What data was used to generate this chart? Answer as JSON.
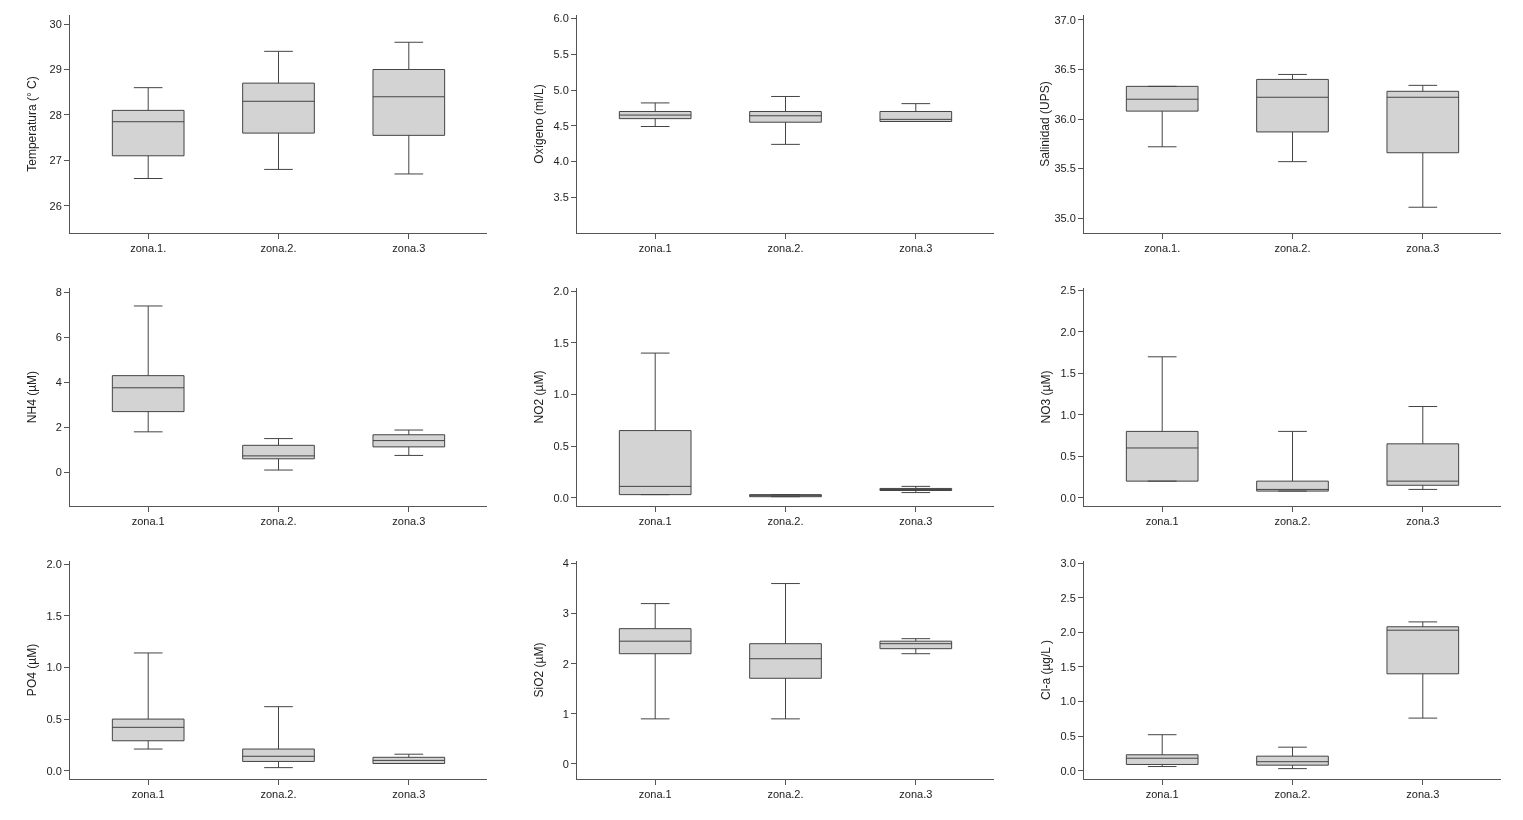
{
  "chart_data": [
    {
      "type": "box",
      "ylabel": "Temperatura (° C)",
      "categories": [
        "zona.1.",
        "zona.2.",
        "zona.3"
      ],
      "color": "#d3d3d3",
      "ylim": [
        25.4,
        30.2
      ],
      "yticks": [
        26,
        27,
        28,
        29,
        30
      ],
      "boxes": [
        {
          "low": 26.6,
          "q1": 27.1,
          "median": 27.85,
          "q3": 28.1,
          "high": 28.6
        },
        {
          "low": 26.8,
          "q1": 27.6,
          "median": 28.3,
          "q3": 28.7,
          "high": 29.4
        },
        {
          "low": 26.7,
          "q1": 27.55,
          "median": 28.4,
          "q3": 29.0,
          "high": 29.6
        }
      ]
    },
    {
      "type": "box",
      "ylabel": "Oxígeno (ml/L)",
      "categories": [
        "zona.1",
        "zona.2.",
        "zona.3"
      ],
      "color": "#d3d3d3",
      "ylim": [
        3.0,
        6.05
      ],
      "yticks": [
        {
          "value": 3.5,
          "label": "3.5"
        },
        {
          "value": 4,
          "label": "4.0"
        },
        {
          "value": 4.5,
          "label": "4.5"
        },
        {
          "value": 5,
          "label": "5.0"
        },
        {
          "value": 5.5,
          "label": "5.5"
        },
        {
          "value": 6,
          "label": "6.0"
        }
      ],
      "boxes": [
        {
          "low": 4.49,
          "q1": 4.6,
          "median": 4.65,
          "q3": 4.7,
          "high": 4.82
        },
        {
          "low": 4.24,
          "q1": 4.55,
          "median": 4.64,
          "q3": 4.7,
          "high": 4.91
        },
        {
          "low": 4.56,
          "q1": 4.56,
          "median": 4.59,
          "q3": 4.7,
          "high": 4.81
        }
      ]
    },
    {
      "type": "box",
      "ylabel": "Salinidad (UPS)",
      "categories": [
        "zona.1.",
        "zona.2.",
        "zona.3"
      ],
      "color": "#d3d3d3",
      "ylim": [
        34.85,
        37.05
      ],
      "yticks": [
        {
          "value": 35,
          "label": "35.0"
        },
        {
          "value": 35.5,
          "label": "35.5"
        },
        {
          "value": 36,
          "label": "36.0"
        },
        {
          "value": 36.5,
          "label": "36.5"
        },
        {
          "value": 37,
          "label": "37.0"
        }
      ],
      "boxes": [
        {
          "low": 35.72,
          "q1": 36.08,
          "median": 36.2,
          "q3": 36.33,
          "high": 36.33
        },
        {
          "low": 35.57,
          "q1": 35.87,
          "median": 36.22,
          "q3": 36.4,
          "high": 36.45
        },
        {
          "low": 35.11,
          "q1": 35.66,
          "median": 36.22,
          "q3": 36.28,
          "high": 36.34
        }
      ]
    },
    {
      "type": "box",
      "ylabel": "NH4 (µM)",
      "categories": [
        "zona.1",
        "zona.2.",
        "zona.3"
      ],
      "color": "#d3d3d3",
      "ylim": [
        -1.5,
        8.2
      ],
      "yticks": [
        0,
        2,
        4,
        6,
        8
      ],
      "boxes": [
        {
          "low": 1.8,
          "q1": 2.7,
          "median": 3.76,
          "q3": 4.3,
          "high": 7.4
        },
        {
          "low": 0.1,
          "q1": 0.6,
          "median": 0.73,
          "q3": 1.2,
          "high": 1.5
        },
        {
          "low": 0.75,
          "q1": 1.13,
          "median": 1.41,
          "q3": 1.67,
          "high": 1.88
        }
      ]
    },
    {
      "type": "box",
      "ylabel": "NO2 (µM)",
      "categories": [
        "zona.1",
        "zona.2.",
        "zona.3"
      ],
      "color": "#d3d3d3",
      "ylim": [
        -0.08,
        2.03
      ],
      "yticks": [
        {
          "value": 0,
          "label": "0.0"
        },
        {
          "value": 0.5,
          "label": "0.5"
        },
        {
          "value": 1,
          "label": "1.0"
        },
        {
          "value": 1.5,
          "label": "1.5"
        },
        {
          "value": 2,
          "label": "2.0"
        }
      ],
      "boxes": [
        {
          "low": 0.03,
          "q1": 0.03,
          "median": 0.11,
          "q3": 0.65,
          "high": 1.4
        },
        {
          "low": 0.01,
          "q1": 0.01,
          "median": 0.02,
          "q3": 0.03,
          "high": 0.03
        },
        {
          "low": 0.05,
          "q1": 0.07,
          "median": 0.08,
          "q3": 0.09,
          "high": 0.11
        }
      ]
    },
    {
      "type": "box",
      "ylabel": "NO3 (µM)",
      "categories": [
        "zona.1",
        "zona.2.",
        "zona.3"
      ],
      "color": "#d3d3d3",
      "ylim": [
        -0.1,
        2.53
      ],
      "yticks": [
        {
          "value": 0,
          "label": "0.0"
        },
        {
          "value": 0.5,
          "label": "0.5"
        },
        {
          "value": 1,
          "label": "1.0"
        },
        {
          "value": 1.5,
          "label": "1.5"
        },
        {
          "value": 2,
          "label": "2.0"
        },
        {
          "value": 2.5,
          "label": "2.5"
        }
      ],
      "boxes": [
        {
          "low": 0.2,
          "q1": 0.2,
          "median": 0.6,
          "q3": 0.8,
          "high": 1.7
        },
        {
          "low": 0.08,
          "q1": 0.08,
          "median": 0.1,
          "q3": 0.2,
          "high": 0.8
        },
        {
          "low": 0.1,
          "q1": 0.15,
          "median": 0.2,
          "q3": 0.65,
          "high": 1.1
        }
      ]
    },
    {
      "type": "box",
      "ylabel": "PO4 (µM)",
      "categories": [
        "zona.1",
        "zona.2.",
        "zona.3"
      ],
      "color": "#d3d3d3",
      "ylim": [
        -0.08,
        2.03
      ],
      "yticks": [
        {
          "value": 0,
          "label": "0.0"
        },
        {
          "value": 0.5,
          "label": "0.5"
        },
        {
          "value": 1,
          "label": "1.0"
        },
        {
          "value": 1.5,
          "label": "1.5"
        },
        {
          "value": 2,
          "label": "2.0"
        }
      ],
      "boxes": [
        {
          "low": 0.21,
          "q1": 0.29,
          "median": 0.42,
          "q3": 0.5,
          "high": 1.14
        },
        {
          "low": 0.03,
          "q1": 0.09,
          "median": 0.14,
          "q3": 0.21,
          "high": 0.62
        },
        {
          "low": 0.07,
          "q1": 0.07,
          "median": 0.1,
          "q3": 0.13,
          "high": 0.16
        }
      ]
    },
    {
      "type": "box",
      "ylabel": "SiO2 (µM)",
      "categories": [
        "zona.1",
        "zona.2.",
        "zona.3"
      ],
      "color": "#d3d3d3",
      "ylim": [
        -0.3,
        4.05
      ],
      "yticks": [
        0,
        1,
        2,
        3,
        4
      ],
      "boxes": [
        {
          "low": 0.9,
          "q1": 2.2,
          "median": 2.45,
          "q3": 2.7,
          "high": 3.2
        },
        {
          "low": 0.9,
          "q1": 1.71,
          "median": 2.1,
          "q3": 2.4,
          "high": 3.6
        },
        {
          "low": 2.2,
          "q1": 2.3,
          "median": 2.4,
          "q3": 2.45,
          "high": 2.5
        }
      ]
    },
    {
      "type": "box",
      "ylabel": "Cl-a (µg/L )",
      "categories": [
        "zona.1",
        "zona.2.",
        "zona.3"
      ],
      "color": "#d3d3d3",
      "ylim": [
        -0.12,
        3.03
      ],
      "yticks": [
        {
          "value": 0,
          "label": "0.0"
        },
        {
          "value": 0.5,
          "label": "0.5"
        },
        {
          "value": 1,
          "label": "1.0"
        },
        {
          "value": 1.5,
          "label": "1.5"
        },
        {
          "value": 2,
          "label": "2.0"
        },
        {
          "value": 2.5,
          "label": "2.5"
        },
        {
          "value": 3,
          "label": "3.0"
        }
      ],
      "boxes": [
        {
          "low": 0.06,
          "q1": 0.09,
          "median": 0.18,
          "q3": 0.23,
          "high": 0.52
        },
        {
          "low": 0.03,
          "q1": 0.08,
          "median": 0.13,
          "q3": 0.21,
          "high": 0.34
        },
        {
          "low": 0.76,
          "q1": 1.4,
          "median": 2.03,
          "q3": 2.08,
          "high": 2.15
        }
      ]
    }
  ]
}
